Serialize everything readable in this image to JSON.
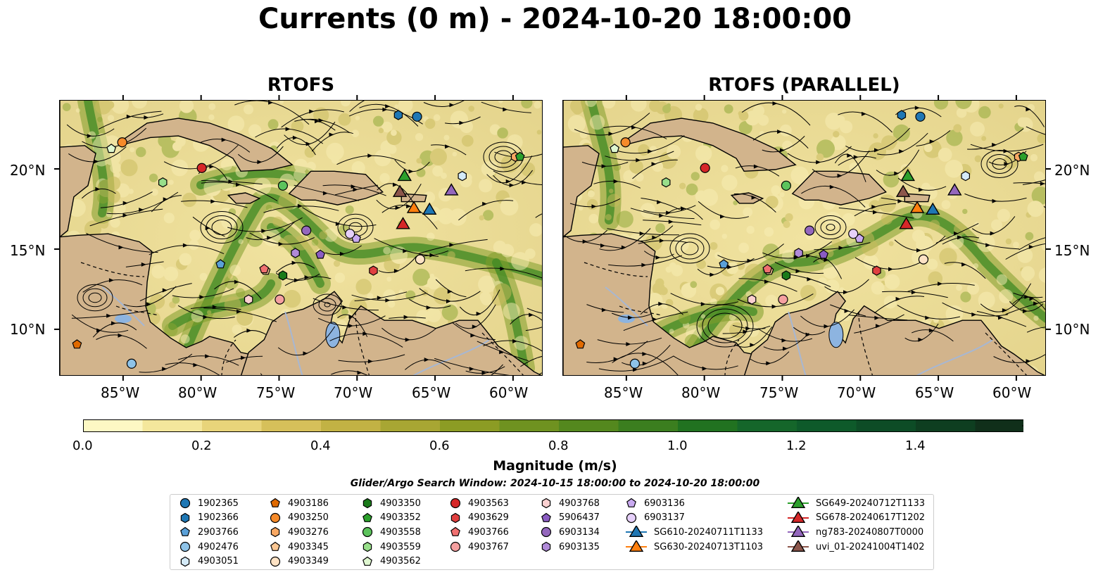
{
  "title": "Currents (0 m) - 2024-10-20 18:00:00",
  "panels": [
    {
      "title": "RTOFS"
    },
    {
      "title": "RTOFS (PARALLEL)"
    }
  ],
  "lat_ticks": [
    "20°N",
    "15°N",
    "10°N"
  ],
  "lon_ticks": [
    "85°W",
    "80°W",
    "75°W",
    "70°W",
    "65°W",
    "60°W"
  ],
  "colorbar": {
    "label": "Magnitude (m/s)",
    "ticks": [
      "0.0",
      "0.2",
      "0.4",
      "0.6",
      "0.8",
      "1.0",
      "1.2",
      "1.4"
    ],
    "colors": [
      "#fdf8c4",
      "#f4e79c",
      "#e8d47a",
      "#d6c05a",
      "#c2b244",
      "#a8a633",
      "#8c9c24",
      "#6f9220",
      "#54881e",
      "#3b7e1f",
      "#217220",
      "#15662a",
      "#0e5a2a",
      "#0d4c26",
      "#0e3e20",
      "#102f1a",
      "#121e10"
    ]
  },
  "search_window": "Glider/Argo Search Window: 2024-10-15 18:00:00 to 2024-10-20 18:00:00",
  "map_colors": {
    "land": "#d2b48c",
    "lake": "#8db4e0",
    "river": "#a7b7d2",
    "ocean_low": "#f2e6a0",
    "ocean_high": "#1f6e1f"
  },
  "legend": [
    {
      "label": "1902365",
      "marker": "circle",
      "color": "#1f77b4"
    },
    {
      "label": "1902366",
      "marker": "hexagon",
      "color": "#1f77b4"
    },
    {
      "label": "2903766",
      "marker": "pentagon",
      "color": "#5aa0d8"
    },
    {
      "label": "4902476",
      "marker": "circle",
      "color": "#8ec3e8"
    },
    {
      "label": "4903051",
      "marker": "hexagon",
      "color": "#d4eaf8"
    },
    {
      "label": "4903186",
      "marker": "pentagon",
      "color": "#e06a00"
    },
    {
      "label": "4903250",
      "marker": "circle",
      "color": "#f58a2a"
    },
    {
      "label": "4903276",
      "marker": "hexagon",
      "color": "#f9a863"
    },
    {
      "label": "4903345",
      "marker": "pentagon",
      "color": "#fbc793"
    },
    {
      "label": "4903349",
      "marker": "circle",
      "color": "#fde2c4"
    },
    {
      "label": "4903350",
      "marker": "hexagon",
      "color": "#1a7a1a"
    },
    {
      "label": "4903352",
      "marker": "pentagon",
      "color": "#2ca02c"
    },
    {
      "label": "4903558",
      "marker": "circle",
      "color": "#5cc35c"
    },
    {
      "label": "4903559",
      "marker": "hexagon",
      "color": "#98df8a"
    },
    {
      "label": "4903562",
      "marker": "pentagon",
      "color": "#dff7d0"
    },
    {
      "label": "4903563",
      "marker": "circle",
      "color": "#d62728"
    },
    {
      "label": "4903629",
      "marker": "hexagon",
      "color": "#e04040"
    },
    {
      "label": "4903766",
      "marker": "pentagon",
      "color": "#f07070"
    },
    {
      "label": "4903767",
      "marker": "circle",
      "color": "#f5a0a0"
    },
    {
      "label": "4903768",
      "marker": "hexagon",
      "color": "#fbd0d0"
    },
    {
      "label": "5906437",
      "marker": "pentagon",
      "color": "#8a5cc2"
    },
    {
      "label": "6903134",
      "marker": "circle",
      "color": "#9467bd"
    },
    {
      "label": "6903135",
      "marker": "hexagon",
      "color": "#b08ad8"
    },
    {
      "label": "6903136",
      "marker": "pentagon",
      "color": "#c9aaf0"
    },
    {
      "label": "6903137",
      "marker": "circle",
      "color": "#e6d0fa"
    },
    {
      "label": "SG610-20240711T1133",
      "marker": "triangle",
      "color": "#1f77b4"
    },
    {
      "label": "SG630-20240713T1103",
      "marker": "triangle",
      "color": "#ff7f0e"
    },
    {
      "label": "SG649-20240712T1133",
      "marker": "triangle",
      "color": "#2ca02c"
    },
    {
      "label": "SG678-20240617T1202",
      "marker": "triangle",
      "color": "#d62728"
    },
    {
      "label": "ng783-20240807T0000",
      "marker": "triangle",
      "color": "#9467bd"
    },
    {
      "label": "uvi_01-20241004T1402",
      "marker": "triangle",
      "color": "#8c564b"
    }
  ],
  "platforms": [
    {
      "id": "1902365",
      "lon": -66.2,
      "lat": 23.3
    },
    {
      "id": "1902366",
      "lon": -67.4,
      "lat": 23.4
    },
    {
      "id": "2903766",
      "lon": -78.8,
      "lat": 14.1
    },
    {
      "id": "4902476",
      "lon": -84.5,
      "lat": 7.9
    },
    {
      "id": "4903051",
      "lon": -63.3,
      "lat": 19.6
    },
    {
      "id": "4903186",
      "lon": -88.0,
      "lat": 9.1
    },
    {
      "id": "4903250",
      "lon": -85.1,
      "lat": 21.7
    },
    {
      "id": "4903276",
      "lon": -59.9,
      "lat": 20.8
    },
    {
      "id": "4903345",
      "lon": -75.9,
      "lat": 13.7
    },
    {
      "id": "4903349",
      "lon": -66.0,
      "lat": 14.4
    },
    {
      "id": "4903350",
      "lon": -74.8,
      "lat": 13.4
    },
    {
      "id": "4903352",
      "lon": -59.6,
      "lat": 20.8
    },
    {
      "id": "4903558",
      "lon": -74.8,
      "lat": 19.0
    },
    {
      "id": "4903559",
      "lon": -82.5,
      "lat": 19.2
    },
    {
      "id": "4903562",
      "lon": -85.8,
      "lat": 21.3
    },
    {
      "id": "4903563",
      "lon": -80.0,
      "lat": 20.1
    },
    {
      "id": "4903629",
      "lon": -69.0,
      "lat": 13.7
    },
    {
      "id": "4903766",
      "lon": -76.0,
      "lat": 13.8
    },
    {
      "id": "4903767",
      "lon": -75.0,
      "lat": 11.9
    },
    {
      "id": "4903768",
      "lon": -77.0,
      "lat": 11.9
    },
    {
      "id": "5906437",
      "lon": -72.4,
      "lat": 14.7
    },
    {
      "id": "6903134",
      "lon": -73.3,
      "lat": 16.2
    },
    {
      "id": "6903135",
      "lon": -74.0,
      "lat": 14.8
    },
    {
      "id": "6903136",
      "lon": -70.1,
      "lat": 15.7
    },
    {
      "id": "6903137",
      "lon": -70.5,
      "lat": 16.0
    },
    {
      "id": "SG610-20240711T1133",
      "lon": -65.4,
      "lat": 17.5
    },
    {
      "id": "SG630-20240713T1103",
      "lon": -66.4,
      "lat": 17.6
    },
    {
      "id": "SG649-20240712T1133",
      "lon": -67.0,
      "lat": 19.6
    },
    {
      "id": "SG678-20240617T1202",
      "lon": -67.1,
      "lat": 16.6
    },
    {
      "id": "ng783-20240807T0000",
      "lon": -64.0,
      "lat": 18.7
    },
    {
      "id": "uvi_01-20241004T1402",
      "lon": -67.3,
      "lat": 18.6
    }
  ]
}
